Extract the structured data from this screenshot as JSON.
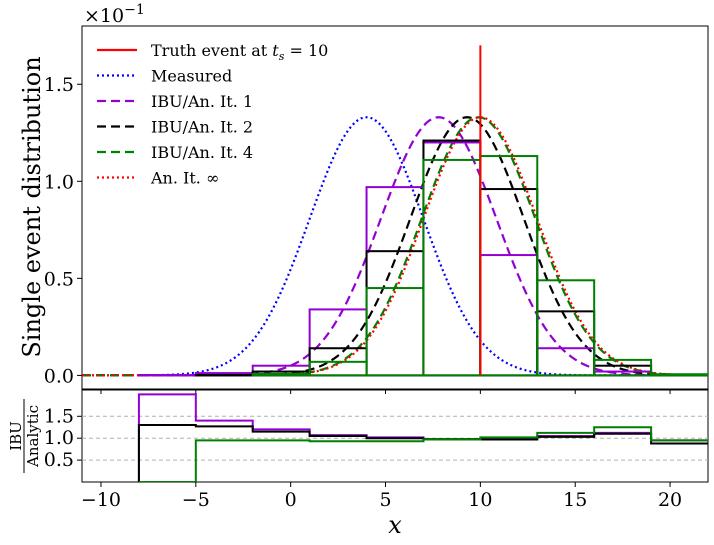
{
  "chart_data": {
    "type": "line",
    "scale_label": "×10",
    "scale_exponent": "−1",
    "ylabel": "Single event distribution",
    "xlabel": "x",
    "ratio_ylabel_num": "IBU",
    "ratio_ylabel_den": "Analytic",
    "xlim": [
      -11,
      22
    ],
    "ylim": [
      -0.007,
      0.18
    ],
    "ratio_ylim": [
      0,
      2.1
    ],
    "x_ticks": [
      -10,
      -5,
      0,
      5,
      10,
      15,
      20
    ],
    "x_tick_labels": [
      "−10",
      "−5",
      "0",
      "5",
      "10",
      "15",
      "20"
    ],
    "y_ticks": [
      0,
      0.05,
      0.1,
      0.15
    ],
    "y_tick_labels": [
      "0.0",
      "0.5",
      "1.0",
      "1.5"
    ],
    "ratio_ticks": [
      0.5,
      1.0,
      1.5
    ],
    "ratio_tick_labels": [
      "0.5",
      "1.0",
      "1.5"
    ],
    "legend_position": "top-left",
    "grid": false,
    "truth_event": {
      "name": "Truth event at t_s = 10",
      "x": 10,
      "y_top": 0.17,
      "color": "#ff0000"
    },
    "legend": [
      {
        "label": "Truth event at ",
        "math": "t",
        "sub": "s",
        "tail": " = 10",
        "color": "#ff0000",
        "style": "solid"
      },
      {
        "label": "Measured",
        "color": "#0000ff",
        "style": "dotted"
      },
      {
        "label": "IBU/An. It. 1",
        "color": "#9400d3",
        "style": "dashed"
      },
      {
        "label": "IBU/An. It. 2",
        "color": "#000000",
        "style": "dashed"
      },
      {
        "label": "IBU/An. It. 4",
        "color": "#008000",
        "style": "dashed"
      },
      {
        "label": "An. It. ∞",
        "color": "#ff0000",
        "style": "dotted"
      }
    ],
    "gaussians": [
      {
        "name": "Measured",
        "mean": 4.0,
        "sigma": 3.0,
        "color": "#0000ff",
        "style": "dotted"
      },
      {
        "name": "IBU/An. It. 1",
        "mean": 7.8,
        "sigma": 3.05,
        "color": "#9400d3",
        "style": "dashed"
      },
      {
        "name": "IBU/An. It. 2",
        "mean": 9.3,
        "sigma": 3.0,
        "color": "#000000",
        "style": "dashed"
      },
      {
        "name": "IBU/An. It. 4",
        "mean": 9.9,
        "sigma": 3.0,
        "color": "#008000",
        "style": "dashed"
      },
      {
        "name": "An. It. ∞",
        "mean": 10.0,
        "sigma": 3.0,
        "color": "#ff0000",
        "style": "dotted"
      }
    ],
    "bin_edges": [
      -8,
      -5,
      -2,
      1,
      4,
      7,
      10,
      13,
      16,
      19,
      22
    ],
    "histograms": [
      {
        "name": "IBU/An. It. 1",
        "color": "#9400d3",
        "values": [
          0.0002,
          0.0012,
          0.005,
          0.034,
          0.097,
          0.12,
          0.062,
          0.014,
          0.002,
          0.0002
        ]
      },
      {
        "name": "IBU/An. It. 2",
        "color": "#000000",
        "values": [
          0.0,
          0.0002,
          0.002,
          0.014,
          0.064,
          0.121,
          0.096,
          0.033,
          0.005,
          0.0004
        ]
      },
      {
        "name": "IBU/An. It. 4",
        "color": "#008000",
        "values": [
          0.0,
          0.0,
          0.0008,
          0.007,
          0.045,
          0.111,
          0.113,
          0.049,
          0.008,
          0.0006
        ]
      }
    ],
    "ratios": [
      {
        "name": "IBU/An. It. 1",
        "color": "#9400d3",
        "values": [
          2.0,
          1.4,
          1.2,
          1.07,
          1.02,
          0.97,
          0.99,
          1.05,
          1.12,
          0.95
        ]
      },
      {
        "name": "IBU/An. It. 2",
        "color": "#000000",
        "values": [
          1.3,
          1.27,
          1.15,
          1.05,
          1.0,
          0.98,
          0.97,
          1.03,
          1.1,
          0.88
        ]
      },
      {
        "name": "IBU/An. It. 4",
        "color": "#008000",
        "values": [
          0.0,
          0.95,
          0.95,
          0.93,
          0.93,
          0.97,
          1.02,
          1.12,
          1.25,
          0.95
        ]
      }
    ]
  }
}
